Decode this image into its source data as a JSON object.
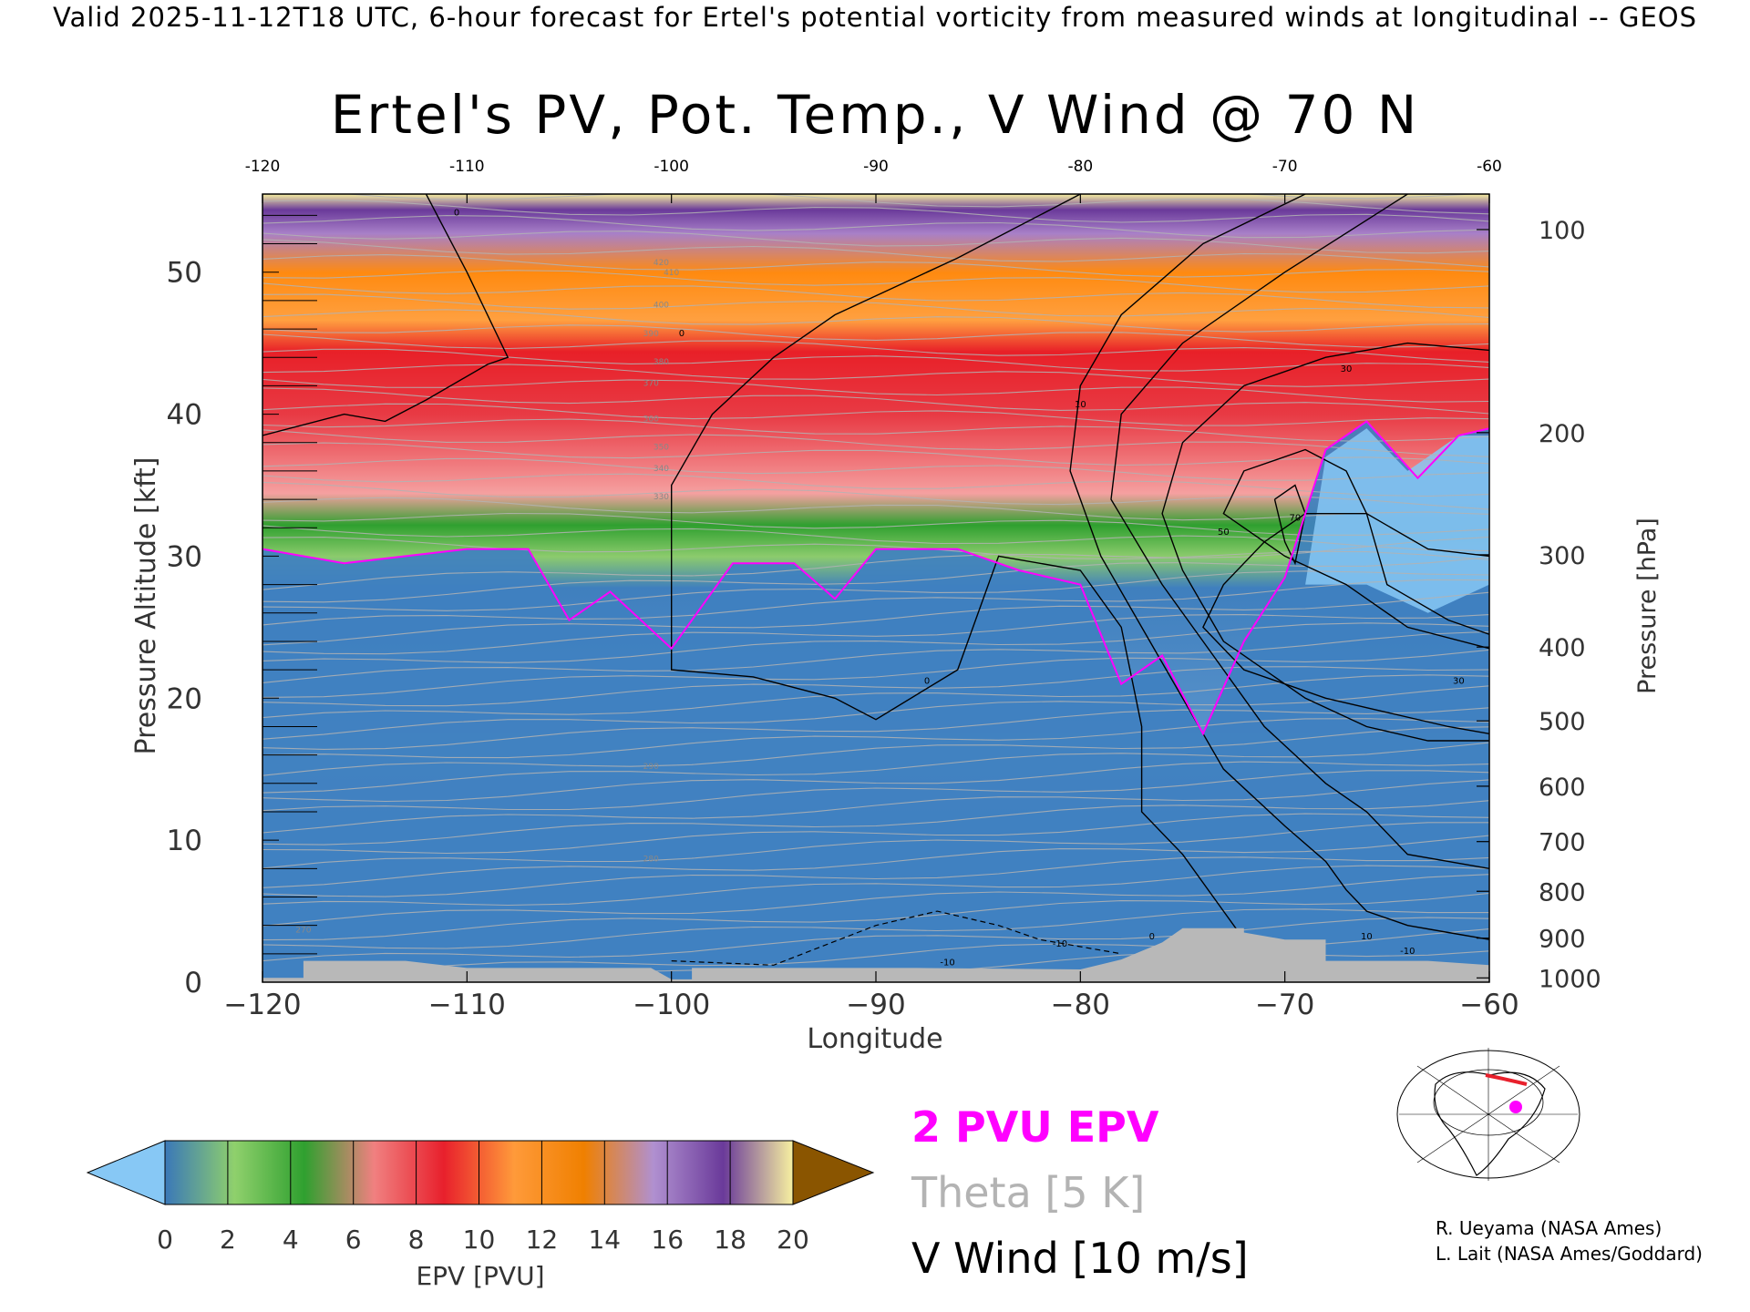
{
  "header": {
    "valid_line": "Valid 2025-11-12T18 UTC, 6-hour forecast for Ertel's potential vorticity from measured winds at longitudinal -- GEOS",
    "title": "Ertel's PV, Pot. Temp., V Wind @ 70 N"
  },
  "chart_data": {
    "type": "heatmap",
    "title": "Ertel's PV, Pot. Temp., V Wind @ 70 N",
    "xlabel": "Longitude",
    "ylabel_left": "Pressure Altitude [kft]",
    "ylabel_right": "Pressure [hPa]",
    "xlim": [
      -120,
      -60
    ],
    "ylim": [
      0,
      55.5
    ],
    "x_ticks": [
      -120,
      -110,
      -100,
      -90,
      -80,
      -70,
      -60
    ],
    "y_ticks_left": [
      0,
      10,
      20,
      30,
      40,
      50
    ],
    "pressure_ticks": [
      {
        "label": "100",
        "kft": 53.0
      },
      {
        "label": "200",
        "kft": 38.7
      },
      {
        "label": "300",
        "kft": 30.1
      },
      {
        "label": "400",
        "kft": 23.6
      },
      {
        "label": "500",
        "kft": 18.4
      },
      {
        "label": "600",
        "kft": 13.8
      },
      {
        "label": "700",
        "kft": 9.9
      },
      {
        "label": "800",
        "kft": 6.4
      },
      {
        "label": "900",
        "kft": 3.1
      },
      {
        "label": "1000",
        "kft": 0.3
      }
    ],
    "tropopause_2pvu_kft": [
      [
        -120,
        30.5
      ],
      [
        -116,
        29.5
      ],
      [
        -110,
        30.5
      ],
      [
        -107,
        30.5
      ],
      [
        -105,
        25.5
      ],
      [
        -103,
        27.5
      ],
      [
        -100,
        23.5
      ],
      [
        -97,
        29.5
      ],
      [
        -94,
        29.5
      ],
      [
        -92,
        27
      ],
      [
        -90,
        30.5
      ],
      [
        -86,
        30.5
      ],
      [
        -83,
        29
      ],
      [
        -80,
        28
      ],
      [
        -78,
        21
      ],
      [
        -76,
        23
      ],
      [
        -74,
        17.5
      ],
      [
        -72,
        24
      ],
      [
        -70,
        28.5
      ],
      [
        -68,
        37.5
      ],
      [
        -66,
        39.5
      ],
      [
        -63.5,
        35.5
      ],
      [
        -61.5,
        38.5
      ],
      [
        -60,
        39
      ]
    ],
    "epv_colorbar": {
      "label": "EPV [PVU]",
      "ticks": [
        0,
        2,
        4,
        6,
        8,
        10,
        12,
        14,
        16,
        18,
        20
      ],
      "colors": [
        "#3a78b8",
        "#8fd06c",
        "#2fa02f",
        "#f08080",
        "#e8202c",
        "#ff9a3a",
        "#f08000",
        "#b090d0",
        "#6a3a9a",
        "#f7f0a0"
      ],
      "under_color": "#87c8f5",
      "over_color": "#8a5500"
    },
    "theta_labels_K": [
      420,
      410,
      400,
      390,
      380,
      370,
      360,
      350,
      340,
      330,
      290,
      280,
      270
    ],
    "v_wind_labels_ms": [
      "0",
      "0",
      "0",
      "10",
      "30",
      "50",
      "70",
      "30",
      "-10",
      "-10",
      "10",
      "0",
      "-10"
    ]
  },
  "legend": {
    "epv_contour": "2 PVU EPV",
    "theta": "Theta [5 K]",
    "v_wind": "V Wind [10 m/s]"
  },
  "colors": {
    "epv_contour": "#ff00ff",
    "theta": "#b3b3b3",
    "wind": "#000000",
    "terrain": "#b8b8b8"
  },
  "credits": [
    "R. Ueyama (NASA Ames)",
    "L. Lait (NASA Ames/Goddard)"
  ]
}
